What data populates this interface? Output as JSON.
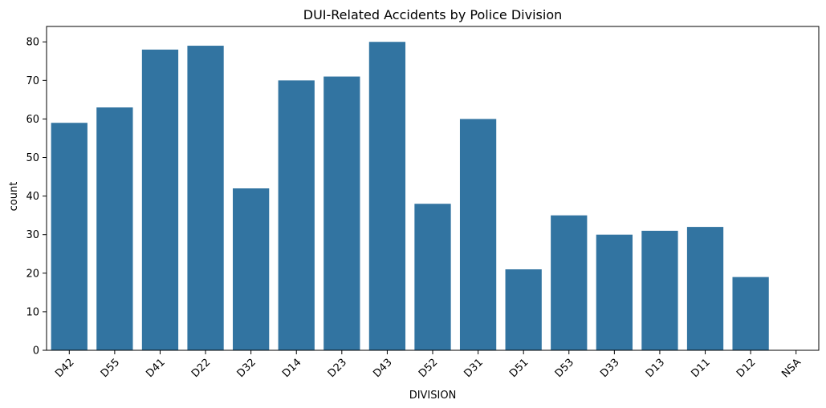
{
  "chart_data": {
    "type": "bar",
    "title": "DUI-Related Accidents by Police Division",
    "xlabel": "DIVISION",
    "ylabel": "count",
    "categories": [
      "D42",
      "D55",
      "D41",
      "D22",
      "D32",
      "D14",
      "D23",
      "D43",
      "D52",
      "D31",
      "D51",
      "D53",
      "D33",
      "D13",
      "D11",
      "D12",
      "NSA"
    ],
    "values": [
      59,
      63,
      78,
      79,
      42,
      70,
      71,
      80,
      38,
      60,
      21,
      35,
      30,
      31,
      32,
      19,
      0
    ],
    "yticks": [
      0,
      10,
      20,
      30,
      40,
      50,
      60,
      70,
      80
    ],
    "ylim": [
      0,
      84
    ],
    "grid": false,
    "bar_color": "#3274a1"
  }
}
